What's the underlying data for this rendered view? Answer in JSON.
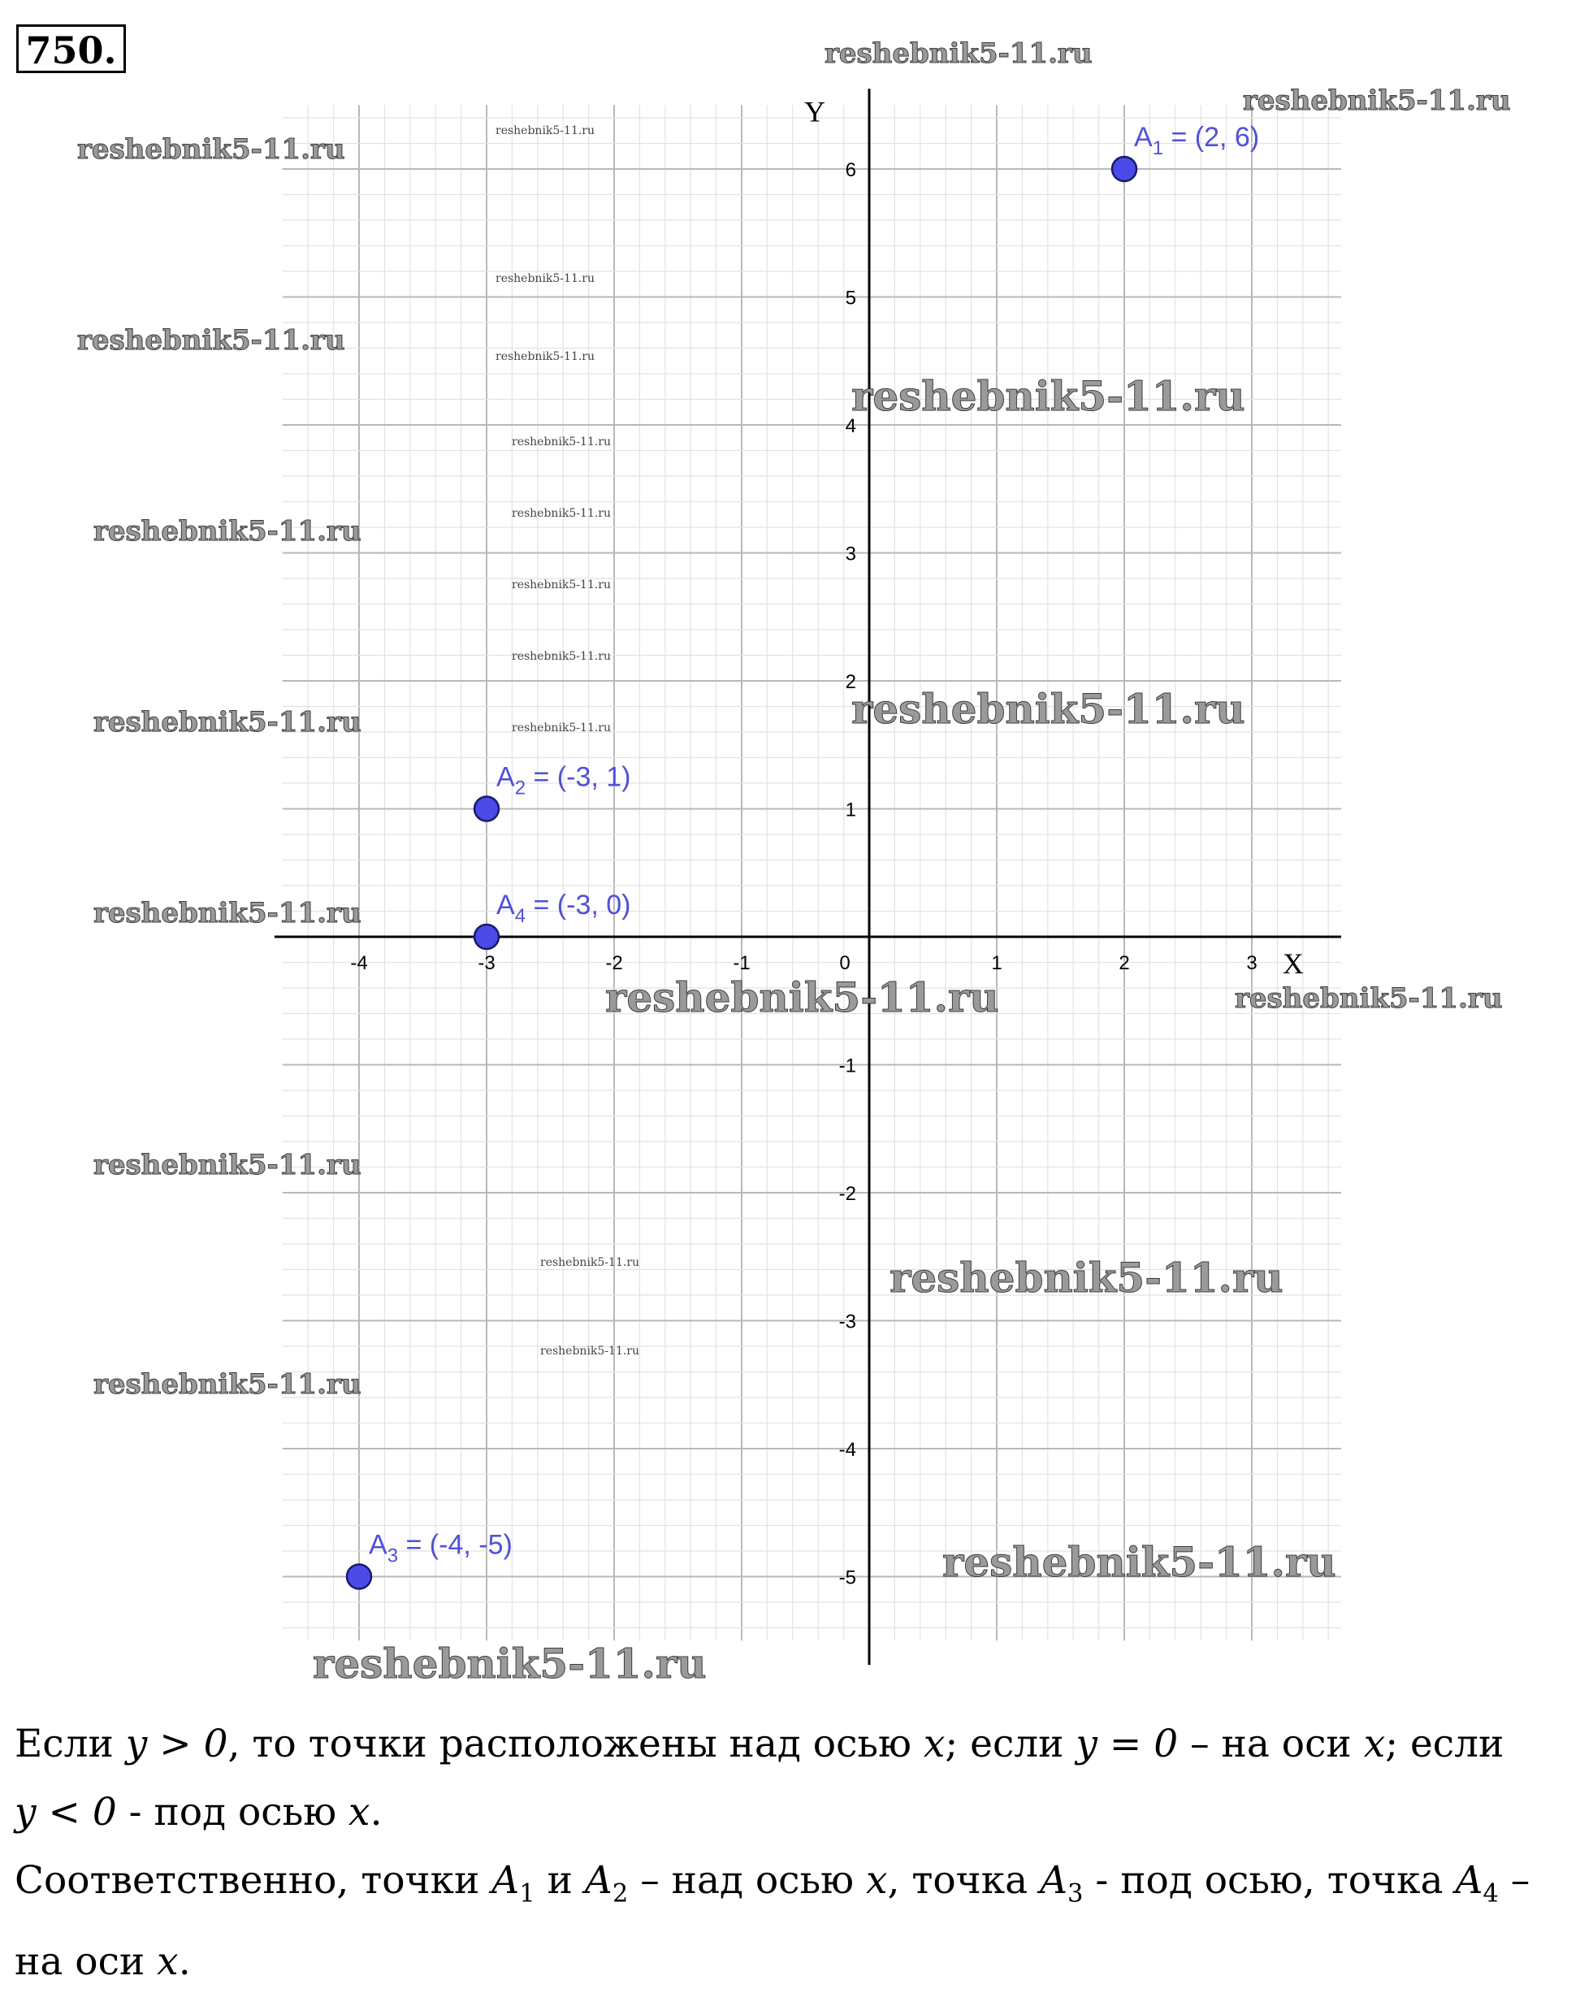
{
  "problem": {
    "number": "750."
  },
  "chart_data": {
    "type": "scatter",
    "xlabel": "X",
    "ylabel": "Y",
    "xlim": [
      -4.6,
      3.7
    ],
    "ylim": [
      -5.5,
      6.5
    ],
    "x_ticks": [
      -4,
      -3,
      -2,
      -1,
      0,
      1,
      2,
      3
    ],
    "y_ticks": [
      -5,
      -4,
      -3,
      -2,
      -1,
      1,
      2,
      3,
      4,
      5,
      6
    ],
    "grid": true,
    "minor_grid_step": 0.2,
    "point_color": "#4a4ae8",
    "points": [
      {
        "name": "A1",
        "label_main": "A",
        "label_sub": "1",
        "label_rest": " = (2, 6)",
        "x": 2,
        "y": 6
      },
      {
        "name": "A2",
        "label_main": "A",
        "label_sub": "2",
        "label_rest": " = (-3, 1)",
        "x": -3,
        "y": 1
      },
      {
        "name": "A3",
        "label_main": "A",
        "label_sub": "3",
        "label_rest": " = (-4, -5)",
        "x": -4,
        "y": -5
      },
      {
        "name": "A4",
        "label_main": "A",
        "label_sub": "4",
        "label_rest": " = (-3, 0)",
        "x": -3,
        "y": 0
      }
    ]
  },
  "watermark": {
    "text": "reshebnik5-11.ru"
  },
  "explanation": {
    "line1": {
      "t1": "Если ",
      "m1": "y > 0",
      "t2": ", то точки расположены над осью ",
      "m2": "x",
      "t3": "; если ",
      "m3": "y = 0",
      "t4": " – на оси ",
      "m4": "x",
      "t5": "; если"
    },
    "line2": {
      "m1": "y < 0",
      "t1": " - под осью ",
      "m2": "x",
      "t2": "."
    },
    "line3": {
      "t1": "Соответственно, точки ",
      "m1": "A",
      "s1": "1",
      "t2": " и ",
      "m2": "A",
      "s2": "2",
      "t3": " – над осью ",
      "m3": "x",
      "t4": ", точка ",
      "m4": "A",
      "s4": "3",
      "t5": " - под осью, точка ",
      "m5": "A",
      "s5": "4",
      "t6": " –"
    },
    "line4": {
      "t1": "на оси ",
      "m1": "x",
      "t2": "."
    }
  }
}
